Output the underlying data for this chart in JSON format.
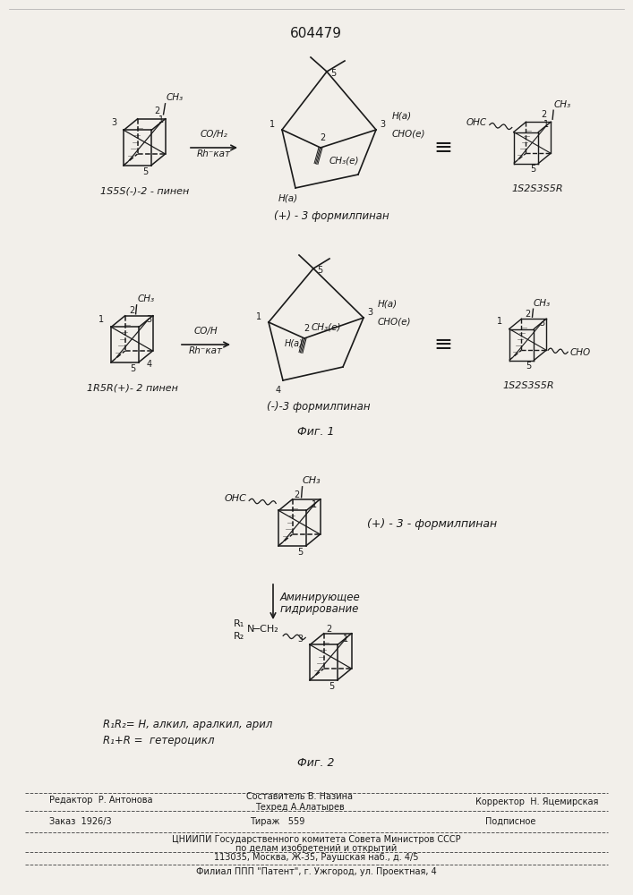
{
  "title_number": "604479",
  "bg_color": "#f2efea",
  "text_color": "#1a1a1a",
  "line1_label1": "1S5S(-)-2 - пинен",
  "line1_label2": "(+) - 3 формилпинан",
  "line1_label3": "1S2S3S5R",
  "line2_label1": "1R5R(+)- 2 пинен",
  "line2_label2": "(-)-3 формилпинан",
  "line2_label3": "1S2S3S5R",
  "fig1_caption": "Фиг. 1",
  "fig2_caption": "Фиг. 2",
  "fig2_plus_formyl": "(+) - 3 - формилпинан",
  "fig2_reaction_line1": "Аминирующее",
  "fig2_reaction_line2": "гидрирование",
  "fig2_r_label1": "R₁R₂= H, алкил, аралкил, арил",
  "fig2_r_label2": "R₁+R =  гетероцикл",
  "footer_editor": "Редактор  Р. Антонова",
  "footer_comp": "Составитель В. Назина",
  "footer_tech": "Техред А.Алатырев",
  "footer_corr": "Корректор  Н. Яцемирская",
  "footer_order": "Заказ  1926/3",
  "footer_tirazh": "Тираж   559",
  "footer_podp": "Подписное",
  "footer_org": "ЦНИИПИ Государственного комитета Совета Министров СССР",
  "footer_dept": "по делам изобретений и открытий",
  "footer_addr": "113035, Москва, Ж-35, Раушская наб., д. 4/5",
  "footer_branch": "Филиал ППП \"Патент\", г. Ужгород, ул. Проектная, 4"
}
